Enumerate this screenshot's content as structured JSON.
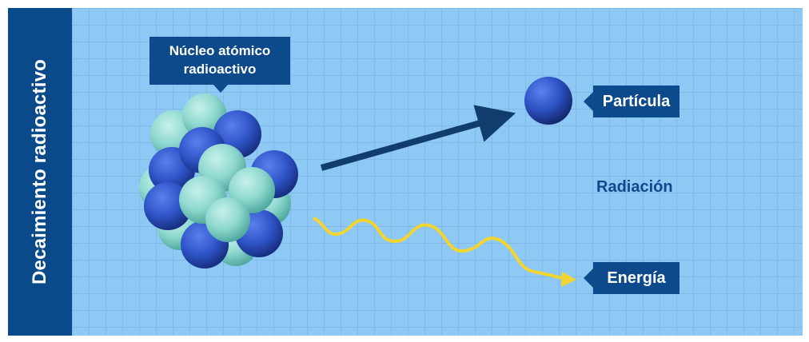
{
  "side_title": "Decaimiento radioactivo",
  "nucleus_label_line1": "Núcleo atómico",
  "nucleus_label_line2": "radioactivo",
  "particle_label": "Partícula",
  "radiation_label": "Radiación",
  "energy_label": "Energía",
  "colors": {
    "sidebar": "#0a4a8a",
    "background": "#8ec8f4",
    "label_box": "#0d4a8c",
    "proton": "#2f55c9",
    "neutron": "#8fd8cf",
    "particle_arrow": "#103d6b",
    "energy_wave": "#f3d531"
  }
}
